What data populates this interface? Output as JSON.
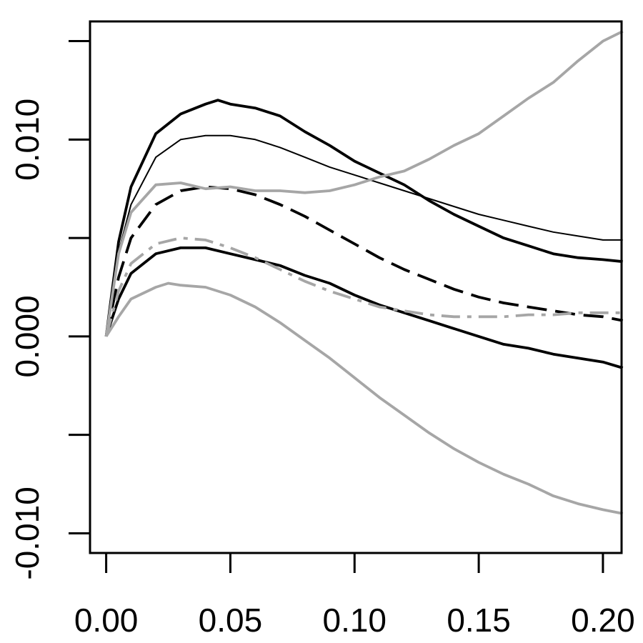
{
  "chart_data": {
    "type": "line",
    "title": "",
    "xlabel": "",
    "ylabel": "",
    "xlim": [
      -0.0065,
      0.2075
    ],
    "ylim": [
      -0.011,
      0.016
    ],
    "x_ticks": [
      0.0,
      0.05,
      0.1,
      0.15,
      0.2
    ],
    "x_tick_labels": [
      "0.00",
      "0.05",
      "0.10",
      "0.15",
      "0.20"
    ],
    "y_ticks": [
      -0.01,
      -0.005,
      0.0,
      0.005,
      0.01,
      0.015
    ],
    "y_tick_labels": [
      "-0.010",
      "",
      "0.000",
      "",
      "0.010",
      ""
    ],
    "grid": false,
    "series": [
      {
        "style": "solid-thin",
        "color": "#000000",
        "x": [
          0.0,
          0.005,
          0.01,
          0.02,
          0.03,
          0.04,
          0.05,
          0.06,
          0.07,
          0.08,
          0.09,
          0.1,
          0.11,
          0.12,
          0.13,
          0.14,
          0.15,
          0.16,
          0.17,
          0.18,
          0.19,
          0.2,
          0.208
        ],
        "y": [
          0.0,
          0.0043,
          0.0067,
          0.0091,
          0.01,
          0.0102,
          0.0102,
          0.01,
          0.0096,
          0.0091,
          0.0086,
          0.0082,
          0.0078,
          0.0074,
          0.007,
          0.0066,
          0.0062,
          0.0059,
          0.0056,
          0.0053,
          0.0051,
          0.0049,
          0.0049
        ]
      },
      {
        "style": "solid-thick",
        "color": "#000000",
        "x": [
          0.0,
          0.005,
          0.01,
          0.02,
          0.03,
          0.04,
          0.045,
          0.05,
          0.06,
          0.07,
          0.08,
          0.09,
          0.1,
          0.11,
          0.12,
          0.13,
          0.14,
          0.15,
          0.16,
          0.17,
          0.18,
          0.19,
          0.2,
          0.208
        ],
        "y": [
          0.0,
          0.0048,
          0.0076,
          0.0103,
          0.0113,
          0.0118,
          0.012,
          0.0118,
          0.0116,
          0.0112,
          0.0104,
          0.0097,
          0.0089,
          0.0083,
          0.0077,
          0.0069,
          0.0062,
          0.0056,
          0.005,
          0.0046,
          0.0042,
          0.004,
          0.0039,
          0.0038
        ]
      },
      {
        "style": "dashed",
        "color": "#000000",
        "x": [
          0.0,
          0.005,
          0.01,
          0.02,
          0.03,
          0.04,
          0.05,
          0.06,
          0.07,
          0.08,
          0.09,
          0.1,
          0.11,
          0.12,
          0.13,
          0.14,
          0.15,
          0.16,
          0.17,
          0.18,
          0.19,
          0.2,
          0.208
        ],
        "y": [
          0.0,
          0.003,
          0.005,
          0.0067,
          0.0074,
          0.0076,
          0.0075,
          0.0072,
          0.0067,
          0.0061,
          0.0054,
          0.0047,
          0.004,
          0.0034,
          0.0029,
          0.0024,
          0.002,
          0.0017,
          0.0015,
          0.0013,
          0.0011,
          0.001,
          0.0008
        ]
      },
      {
        "style": "solid-thick",
        "color": "#000000",
        "x": [
          0.0,
          0.005,
          0.01,
          0.02,
          0.03,
          0.04,
          0.05,
          0.06,
          0.07,
          0.08,
          0.09,
          0.1,
          0.11,
          0.12,
          0.13,
          0.14,
          0.15,
          0.16,
          0.17,
          0.18,
          0.19,
          0.2,
          0.208
        ],
        "y": [
          0.0,
          0.0019,
          0.0032,
          0.0042,
          0.0045,
          0.0045,
          0.0042,
          0.0039,
          0.0036,
          0.0031,
          0.0027,
          0.0021,
          0.0016,
          0.0012,
          0.0008,
          0.0004,
          0.0,
          -0.0004,
          -0.0006,
          -0.0009,
          -0.0011,
          -0.0013,
          -0.0016
        ]
      },
      {
        "style": "dash-dot",
        "color": "#a6a6a6",
        "x": [
          0.0,
          0.005,
          0.01,
          0.02,
          0.03,
          0.04,
          0.05,
          0.06,
          0.07,
          0.08,
          0.09,
          0.1,
          0.11,
          0.12,
          0.13,
          0.14,
          0.15,
          0.16,
          0.17,
          0.18,
          0.19,
          0.2,
          0.208
        ],
        "y": [
          0.0,
          0.0023,
          0.0037,
          0.0047,
          0.005,
          0.0049,
          0.0045,
          0.004,
          0.0034,
          0.0028,
          0.0023,
          0.0019,
          0.0015,
          0.0013,
          0.0011,
          0.001,
          0.001,
          0.001,
          0.0011,
          0.0011,
          0.0012,
          0.0012,
          0.0012
        ]
      },
      {
        "style": "solid-thick",
        "color": "#a6a6a6",
        "x": [
          0.0,
          0.005,
          0.01,
          0.02,
          0.03,
          0.04,
          0.05,
          0.06,
          0.07,
          0.08,
          0.09,
          0.1,
          0.11,
          0.12,
          0.13,
          0.14,
          0.15,
          0.16,
          0.17,
          0.18,
          0.19,
          0.2,
          0.208
        ],
        "y": [
          0.0,
          0.0042,
          0.0063,
          0.0077,
          0.0078,
          0.0075,
          0.0076,
          0.0074,
          0.0074,
          0.0073,
          0.0074,
          0.0077,
          0.0081,
          0.0084,
          0.009,
          0.0097,
          0.0103,
          0.0112,
          0.0121,
          0.0129,
          0.014,
          0.015,
          0.0155
        ]
      },
      {
        "style": "solid-thick",
        "color": "#a6a6a6",
        "x": [
          0.0,
          0.005,
          0.01,
          0.02,
          0.025,
          0.03,
          0.04,
          0.05,
          0.06,
          0.07,
          0.08,
          0.09,
          0.1,
          0.11,
          0.12,
          0.13,
          0.14,
          0.15,
          0.16,
          0.17,
          0.18,
          0.19,
          0.2,
          0.208
        ],
        "y": [
          0.0,
          0.001,
          0.0019,
          0.0025,
          0.0027,
          0.0026,
          0.0025,
          0.0021,
          0.0015,
          0.0007,
          -0.0002,
          -0.0011,
          -0.0021,
          -0.0031,
          -0.004,
          -0.0049,
          -0.0057,
          -0.0064,
          -0.007,
          -0.0075,
          -0.0081,
          -0.0085,
          -0.0088,
          -0.009
        ]
      }
    ]
  }
}
